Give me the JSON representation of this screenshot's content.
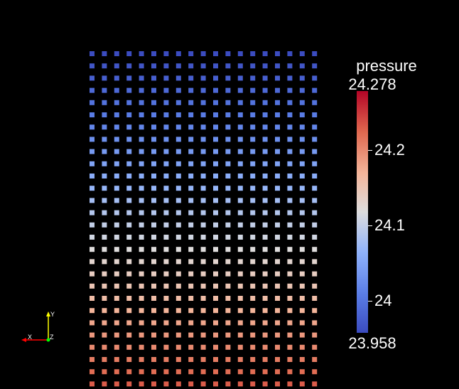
{
  "legend": {
    "title": "pressure",
    "max_label": "24.278",
    "min_label": "23.958",
    "range": [
      23.958,
      24.278
    ],
    "ticks": [
      {
        "value": 24.2,
        "label": "24.2"
      },
      {
        "value": 24.1,
        "label": "24.1"
      },
      {
        "value": 24.0,
        "label": "24"
      }
    ],
    "colormap": [
      "#3b4cc0",
      "#6f92f3",
      "#aac7fd",
      "#dddddd",
      "#f7b89c",
      "#e7745b",
      "#b40426"
    ]
  },
  "orientation_axes": {
    "x_label": "X",
    "y_label": "Y",
    "z_label": "Z",
    "x_color": "#ff0000",
    "y_color": "#ffff00",
    "z_color": "#00ff00"
  },
  "point_grid": {
    "columns": 19,
    "rows": 29,
    "pressure_top": 23.958,
    "pressure_bottom_visible": 24.24
  }
}
